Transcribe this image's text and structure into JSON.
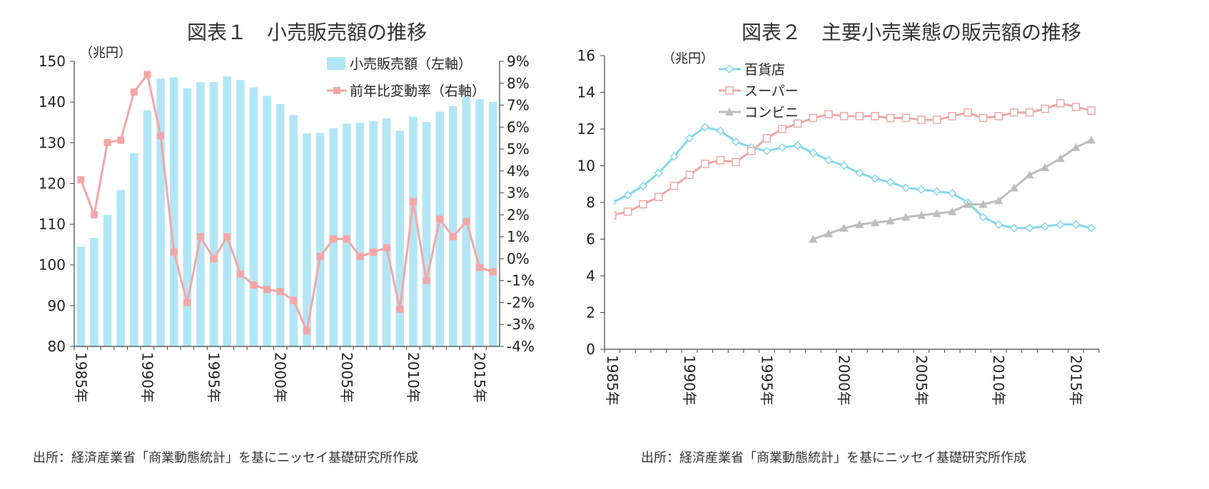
{
  "figure1": {
    "title": "図表１　小売販売額の推移",
    "unit_label": "（兆円）",
    "source": "出所：経済産業省「商業動態統計」を基にニッセイ基礎研究所作成"
  },
  "figure2": {
    "title": "図表２　主要小売業態の販売額の推移",
    "unit_label": "（兆円）",
    "source": "出所：経済産業省「商業動態統計」を基にニッセイ基礎研究所作成"
  },
  "colors": {
    "bar": "#b3e6f5",
    "yoy_line": "#f4a6a6",
    "dept_store": "#85d8ec",
    "supermarket": "#f0a8a8",
    "convenience": "#bdbdbd",
    "axis": "#444444"
  },
  "chart_data": [
    {
      "type": "bar",
      "title": "図表１　小売販売額の推移",
      "x": [
        1985,
        1986,
        1987,
        1988,
        1989,
        1990,
        1991,
        1992,
        1993,
        1994,
        1995,
        1996,
        1997,
        1998,
        1999,
        2000,
        2001,
        2002,
        2003,
        2004,
        2005,
        2006,
        2007,
        2008,
        2009,
        2010,
        2011,
        2012,
        2013,
        2014,
        2015,
        2016
      ],
      "x_ticks": [
        1985,
        1990,
        1995,
        2000,
        2005,
        2010,
        2015
      ],
      "x_tick_labels": [
        "1985年",
        "1990年",
        "1995年",
        "2000年",
        "2005年",
        "2010年",
        "2015年"
      ],
      "ylabel": "（兆円）",
      "ylim": [
        80,
        150
      ],
      "yticks": [
        80,
        90,
        100,
        110,
        120,
        130,
        140,
        150
      ],
      "y2lim": [
        -4,
        9
      ],
      "y2ticks": [
        -4,
        -3,
        -2,
        -1,
        0,
        1,
        2,
        3,
        4,
        5,
        6,
        7,
        8,
        9
      ],
      "y2_tick_labels": [
        "-4%",
        "-3%",
        "-2%",
        "-1%",
        "0%",
        "1%",
        "2%",
        "3%",
        "4%",
        "5%",
        "6%",
        "7%",
        "8%",
        "9%"
      ],
      "series": [
        {
          "name": "小売販売額（左軸）",
          "kind": "bar",
          "axis": "left",
          "values": [
            104.5,
            106.6,
            112.3,
            118.4,
            127.4,
            138.0,
            145.8,
            146.1,
            143.4,
            144.9,
            144.9,
            146.3,
            145.4,
            143.6,
            141.5,
            139.5,
            136.8,
            132.3,
            132.4,
            133.6,
            134.7,
            134.9,
            135.3,
            136.0,
            133.0,
            136.4,
            135.1,
            137.6,
            139.0,
            141.3,
            140.7,
            140.0
          ]
        },
        {
          "name": "前年比変動率（右軸）",
          "kind": "line",
          "axis": "right",
          "marker": "square",
          "values": [
            3.6,
            2.0,
            5.3,
            5.4,
            7.6,
            8.4,
            5.6,
            0.3,
            -2.0,
            1.0,
            0.0,
            1.0,
            -0.7,
            -1.2,
            -1.4,
            -1.5,
            -1.9,
            -3.3,
            0.1,
            0.9,
            0.9,
            0.1,
            0.3,
            0.5,
            -2.3,
            2.6,
            -1.0,
            1.8,
            1.0,
            1.7,
            -0.4,
            -0.6
          ]
        }
      ]
    },
    {
      "type": "line",
      "title": "図表２　主要小売業態の販売額の推移",
      "x": [
        1985,
        1986,
        1987,
        1988,
        1989,
        1990,
        1991,
        1992,
        1993,
        1994,
        1995,
        1996,
        1997,
        1998,
        1999,
        2000,
        2001,
        2002,
        2003,
        2004,
        2005,
        2006,
        2007,
        2008,
        2009,
        2010,
        2011,
        2012,
        2013,
        2014,
        2015,
        2016
      ],
      "x_ticks": [
        1985,
        1990,
        1995,
        2000,
        2005,
        2010,
        2015
      ],
      "x_tick_labels": [
        "1985年",
        "1990年",
        "1995年",
        "2000年",
        "2005年",
        "2010年",
        "2015年"
      ],
      "ylabel": "（兆円）",
      "ylim": [
        0,
        16
      ],
      "yticks": [
        0,
        2,
        4,
        6,
        8,
        10,
        12,
        14,
        16
      ],
      "series": [
        {
          "name": "百貨店",
          "marker": "diamond",
          "x": [
            1985,
            1986,
            1987,
            1988,
            1989,
            1990,
            1991,
            1992,
            1993,
            1994,
            1995,
            1996,
            1997,
            1998,
            1999,
            2000,
            2001,
            2002,
            2003,
            2004,
            2005,
            2006,
            2007,
            2008,
            2009,
            2010,
            2011,
            2012,
            2013,
            2014,
            2015,
            2016
          ],
          "values": [
            8.0,
            8.4,
            8.9,
            9.6,
            10.5,
            11.5,
            12.1,
            11.9,
            11.3,
            11.0,
            10.8,
            11.0,
            11.1,
            10.7,
            10.3,
            10.0,
            9.6,
            9.3,
            9.1,
            8.8,
            8.7,
            8.6,
            8.5,
            8.0,
            7.2,
            6.8,
            6.6,
            6.6,
            6.7,
            6.8,
            6.8,
            6.6
          ]
        },
        {
          "name": "スーパー",
          "marker": "square",
          "x": [
            1985,
            1986,
            1987,
            1988,
            1989,
            1990,
            1991,
            1992,
            1993,
            1994,
            1995,
            1996,
            1997,
            1998,
            1999,
            2000,
            2001,
            2002,
            2003,
            2004,
            2005,
            2006,
            2007,
            2008,
            2009,
            2010,
            2011,
            2012,
            2013,
            2014,
            2015,
            2016
          ],
          "values": [
            7.3,
            7.5,
            7.9,
            8.3,
            8.9,
            9.5,
            10.1,
            10.3,
            10.2,
            10.8,
            11.5,
            12.0,
            12.3,
            12.6,
            12.8,
            12.7,
            12.7,
            12.7,
            12.6,
            12.6,
            12.5,
            12.5,
            12.7,
            12.9,
            12.6,
            12.7,
            12.9,
            12.9,
            13.1,
            13.4,
            13.2,
            13.0
          ]
        },
        {
          "name": "コンビニ",
          "marker": "triangle",
          "x": [
            1998,
            1999,
            2000,
            2001,
            2002,
            2003,
            2004,
            2005,
            2006,
            2007,
            2008,
            2009,
            2010,
            2011,
            2012,
            2013,
            2014,
            2015,
            2016
          ],
          "values": [
            6.0,
            6.3,
            6.6,
            6.8,
            6.9,
            7.0,
            7.2,
            7.3,
            7.4,
            7.5,
            7.9,
            7.9,
            8.1,
            8.8,
            9.5,
            9.9,
            10.4,
            11.0,
            11.4
          ]
        }
      ]
    }
  ]
}
